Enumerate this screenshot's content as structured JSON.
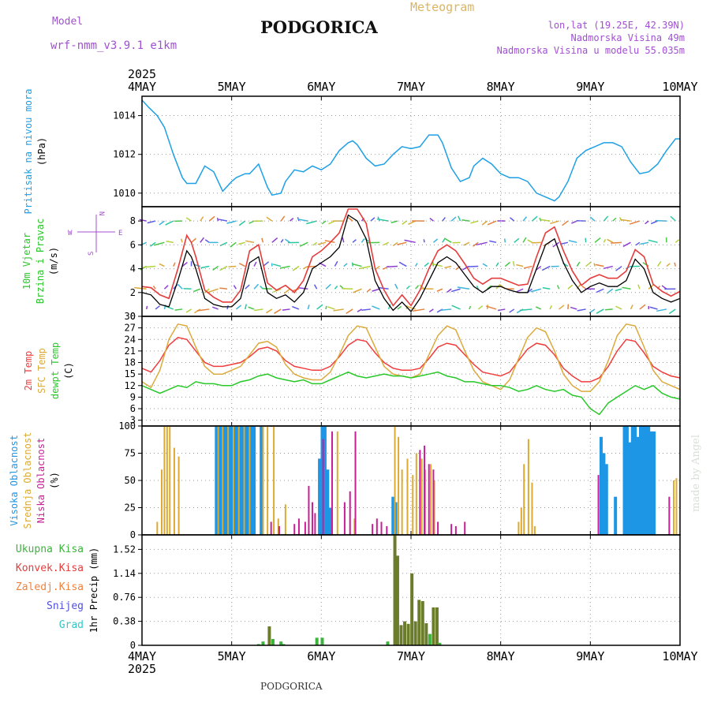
{
  "header": {
    "model_label": "Model",
    "model_name": "wrf-nmm_v3.9.1 e1km",
    "title": "PODGORICA",
    "product": "Meteogram",
    "coords": "lon,lat (19.25E, 42.39N)",
    "elevation": "Nadmorska Visina 49m",
    "model_elevation": "Nadmorska Visina u modelu 55.035m",
    "footer_city": "PODGORICA",
    "credit": "made by Angel"
  },
  "time_axis": {
    "year": "2025",
    "labels": [
      "4MAY",
      "5MAY",
      "6MAY",
      "7MAY",
      "8MAY",
      "9MAY",
      "10MAY"
    ]
  },
  "colors": {
    "pressure": "#1ea0e6",
    "temp2m": "#f03c3c",
    "sfc": "#dcaa3c",
    "dewpt": "#28c828",
    "high": "#1e96e6",
    "mid": "#dcaa32",
    "low": "#c81e96",
    "total_precip": "#3cb43c",
    "precip_bar": "#6b7d2a",
    "wind_speed": "#000000",
    "gust": "#e63c3c"
  },
  "chart_data": [
    {
      "type": "line",
      "name": "pressure",
      "ylabel": [
        "Pritisak na nivou mora",
        "(hPa)"
      ],
      "yticks": [
        1010,
        1012,
        1014
      ],
      "ylim": [
        1009.3,
        1015
      ],
      "x_days": [
        0,
        0.08,
        0.17,
        0.25,
        0.35,
        0.45,
        0.5,
        0.55,
        0.6,
        0.7,
        0.8,
        0.9,
        1.0,
        1.05,
        1.15,
        1.2,
        1.3,
        1.4,
        1.45,
        1.55,
        1.6,
        1.7,
        1.8,
        1.9,
        2.0,
        2.1,
        2.2,
        2.3,
        2.35,
        2.4,
        2.5,
        2.6,
        2.7,
        2.8,
        2.9,
        3.0,
        3.1,
        3.2,
        3.3,
        3.35,
        3.45,
        3.55,
        3.65,
        3.7,
        3.8,
        3.9,
        4.0,
        4.1,
        4.2,
        4.3,
        4.4,
        4.5,
        4.6,
        4.65,
        4.75,
        4.85,
        4.95,
        5.05,
        5.15,
        5.25,
        5.35,
        5.45,
        5.55,
        5.65,
        5.75,
        5.85,
        5.95,
        6.0
      ],
      "values": [
        1014.8,
        1014.4,
        1014.0,
        1013.4,
        1012.0,
        1010.8,
        1010.5,
        1010.5,
        1010.5,
        1011.4,
        1011.1,
        1010.1,
        1010.6,
        1010.8,
        1011.0,
        1011.0,
        1011.5,
        1010.3,
        1009.9,
        1010.0,
        1010.6,
        1011.2,
        1011.1,
        1011.4,
        1011.2,
        1011.5,
        1012.2,
        1012.6,
        1012.7,
        1012.5,
        1011.8,
        1011.4,
        1011.5,
        1012.0,
        1012.4,
        1012.3,
        1012.4,
        1013.0,
        1013.0,
        1012.6,
        1011.3,
        1010.6,
        1010.8,
        1011.4,
        1011.8,
        1011.5,
        1011.0,
        1010.8,
        1010.8,
        1010.6,
        1010.0,
        1009.8,
        1009.6,
        1009.8,
        1010.6,
        1011.8,
        1012.2,
        1012.4,
        1012.6,
        1012.6,
        1012.4,
        1011.6,
        1011.0,
        1011.1,
        1011.5,
        1012.2,
        1012.8,
        1012.8
      ]
    },
    {
      "type": "line",
      "name": "wind",
      "ylabel": [
        "10m Vjetar",
        "Brzina i Pravac",
        "(m/s)"
      ],
      "compass": [
        "N",
        "W",
        "E",
        "S"
      ],
      "yticks": [
        0,
        2,
        4,
        6,
        8
      ],
      "ylim": [
        0,
        9.2
      ],
      "x_days": [
        0,
        0.1,
        0.2,
        0.3,
        0.4,
        0.5,
        0.55,
        0.6,
        0.7,
        0.8,
        0.9,
        1.0,
        1.1,
        1.2,
        1.3,
        1.4,
        1.5,
        1.6,
        1.7,
        1.8,
        1.9,
        2.0,
        2.1,
        2.2,
        2.3,
        2.4,
        2.5,
        2.6,
        2.7,
        2.8,
        2.9,
        3.0,
        3.1,
        3.2,
        3.3,
        3.4,
        3.5,
        3.6,
        3.7,
        3.8,
        3.9,
        4.0,
        4.1,
        4.2,
        4.3,
        4.4,
        4.5,
        4.6,
        4.7,
        4.8,
        4.9,
        5.0,
        5.1,
        5.2,
        5.3,
        5.4,
        5.5,
        5.6,
        5.7,
        5.8,
        5.9,
        6.0
      ],
      "series": [
        {
          "key": "speed",
          "color_key": "wind_speed",
          "values": [
            2.0,
            1.8,
            1.0,
            0.8,
            3.0,
            5.5,
            5.0,
            4.0,
            1.5,
            1.0,
            0.8,
            0.8,
            1.5,
            4.5,
            5.0,
            2.0,
            1.5,
            1.8,
            1.2,
            2.0,
            4.0,
            4.5,
            5.0,
            5.8,
            8.5,
            8.0,
            6.5,
            3.0,
            1.5,
            0.5,
            1.2,
            0.4,
            1.5,
            3.0,
            4.5,
            5.0,
            4.5,
            3.5,
            2.5,
            2.0,
            2.5,
            2.5,
            2.2,
            2.0,
            2.0,
            4.0,
            6.0,
            6.5,
            4.5,
            3.0,
            2.0,
            2.5,
            2.8,
            2.5,
            2.5,
            3.0,
            4.8,
            4.0,
            2.0,
            1.5,
            1.2,
            1.5
          ]
        },
        {
          "key": "gust",
          "color_key": "gust",
          "values": [
            2.5,
            2.4,
            1.8,
            1.5,
            4.0,
            6.8,
            6.2,
            5.0,
            2.2,
            1.6,
            1.2,
            1.2,
            2.2,
            5.5,
            6.0,
            2.8,
            2.2,
            2.6,
            2.0,
            3.0,
            5.0,
            5.5,
            6.2,
            7.0,
            9.0,
            9.0,
            7.8,
            4.0,
            2.2,
            0.9,
            1.8,
            0.9,
            2.2,
            4.0,
            5.5,
            6.0,
            5.5,
            4.4,
            3.2,
            2.7,
            3.2,
            3.2,
            2.9,
            2.6,
            2.7,
            5.0,
            7.0,
            7.5,
            5.5,
            3.8,
            2.6,
            3.2,
            3.5,
            3.2,
            3.2,
            3.8,
            5.6,
            5.0,
            2.7,
            2.1,
            1.7,
            2.1
          ]
        }
      ]
    },
    {
      "type": "line",
      "name": "temperature",
      "ylabel": [
        "2m Temp",
        "SFC Temp",
        "dewpt Temp",
        "(C)"
      ],
      "yticks": [
        3,
        6,
        9,
        12,
        15,
        18,
        21,
        24,
        27,
        30
      ],
      "ylim": [
        1.5,
        30
      ],
      "x_days": [
        0,
        0.1,
        0.2,
        0.3,
        0.4,
        0.5,
        0.6,
        0.7,
        0.8,
        0.9,
        1.0,
        1.1,
        1.2,
        1.3,
        1.4,
        1.5,
        1.6,
        1.7,
        1.8,
        1.9,
        2.0,
        2.1,
        2.2,
        2.3,
        2.4,
        2.5,
        2.6,
        2.7,
        2.8,
        2.9,
        3.0,
        3.1,
        3.2,
        3.3,
        3.4,
        3.5,
        3.6,
        3.7,
        3.8,
        3.9,
        4.0,
        4.1,
        4.2,
        4.3,
        4.4,
        4.5,
        4.6,
        4.7,
        4.8,
        4.9,
        5.0,
        5.1,
        5.2,
        5.3,
        5.4,
        5.5,
        5.6,
        5.7,
        5.8,
        5.9,
        6.0
      ],
      "series": [
        {
          "key": "temp2m",
          "name": "2m Temp",
          "values": [
            16.5,
            15.5,
            18.5,
            22.5,
            24.5,
            24.0,
            21.0,
            18.0,
            17.0,
            17.0,
            17.5,
            18.0,
            19.5,
            21.5,
            22.0,
            21.0,
            18.5,
            17.0,
            16.5,
            16.0,
            16.0,
            17.0,
            19.5,
            22.5,
            24.0,
            23.5,
            20.5,
            18.0,
            16.5,
            16.0,
            16.0,
            16.5,
            19.0,
            22.0,
            23.0,
            22.5,
            20.0,
            17.5,
            15.5,
            15.0,
            14.5,
            15.5,
            18.5,
            21.5,
            23.0,
            22.5,
            20.0,
            16.5,
            14.5,
            13.0,
            13.0,
            14.0,
            17.0,
            21.0,
            24.0,
            23.5,
            20.5,
            17.0,
            15.5,
            14.5,
            14.0
          ]
        },
        {
          "key": "sfc",
          "name": "SFC Temp",
          "values": [
            13.0,
            11.5,
            16.0,
            24.0,
            28.0,
            27.5,
            22.0,
            17.0,
            15.0,
            15.0,
            16.0,
            17.0,
            20.0,
            23.0,
            23.5,
            22.0,
            17.5,
            15.0,
            14.0,
            13.5,
            13.5,
            15.5,
            20.0,
            25.0,
            27.5,
            27.0,
            22.0,
            17.0,
            15.0,
            14.5,
            14.0,
            15.0,
            20.0,
            25.0,
            27.5,
            26.5,
            21.0,
            16.0,
            13.0,
            12.0,
            11.0,
            13.5,
            19.0,
            24.5,
            27.0,
            26.0,
            21.0,
            15.0,
            12.0,
            10.5,
            10.5,
            13.0,
            18.5,
            25.0,
            28.0,
            27.5,
            22.0,
            16.0,
            13.0,
            12.0,
            11.0
          ]
        },
        {
          "key": "dewpt",
          "name": "dewpt Temp",
          "values": [
            12.0,
            11.0,
            10.0,
            11.0,
            12.0,
            11.5,
            13.0,
            12.5,
            12.5,
            12.0,
            12.0,
            13.0,
            13.5,
            14.5,
            15.0,
            14.0,
            13.5,
            13.0,
            13.5,
            12.5,
            12.5,
            13.5,
            14.5,
            15.5,
            14.5,
            14.0,
            14.5,
            15.0,
            14.5,
            14.5,
            14.0,
            14.5,
            15.0,
            15.5,
            14.5,
            14.0,
            13.0,
            13.0,
            12.5,
            12.0,
            12.0,
            11.5,
            10.5,
            11.0,
            12.0,
            11.0,
            10.5,
            11.0,
            9.5,
            9.0,
            6.0,
            4.5,
            7.5,
            9.0,
            10.5,
            12.0,
            11.0,
            12.0,
            10.0,
            9.0,
            8.5
          ]
        }
      ]
    },
    {
      "type": "bar",
      "name": "cloud",
      "ylabel": [
        "Visoka Oblacnost",
        "Srednja Oblacnost",
        "Niska Oblacnost",
        "(%)"
      ],
      "yticks": [
        0,
        25,
        50,
        75,
        100
      ],
      "ylim": [
        0,
        100
      ],
      "series": [
        {
          "key": "high",
          "name": "Visoka Oblacnost",
          "x_days": [
            0.83,
            0.86,
            0.89,
            0.92,
            0.95,
            0.98,
            1.01,
            1.04,
            1.07,
            1.1,
            1.13,
            1.16,
            1.19,
            1.22,
            1.25,
            1.33,
            1.98,
            2.01,
            2.04,
            2.07,
            2.1,
            2.8,
            2.83,
            5.12,
            5.15,
            5.18,
            5.28,
            5.38,
            5.41,
            5.44,
            5.47,
            5.5,
            5.53,
            5.56,
            5.59,
            5.62,
            5.65,
            5.68,
            5.71
          ],
          "values": [
            100,
            100,
            100,
            100,
            100,
            100,
            100,
            100,
            100,
            100,
            100,
            100,
            100,
            100,
            100,
            100,
            70,
            100,
            100,
            60,
            25,
            35,
            30,
            90,
            75,
            65,
            35,
            100,
            100,
            85,
            100,
            100,
            90,
            100,
            100,
            100,
            100,
            95,
            95
          ]
        },
        {
          "key": "mid",
          "name": "Srednja Oblacnost",
          "x_days": [
            0.17,
            0.22,
            0.25,
            0.28,
            0.31,
            0.36,
            0.41,
            0.85,
            0.9,
            0.96,
            1.02,
            1.08,
            1.14,
            1.2,
            1.35,
            1.4,
            1.47,
            1.52,
            1.6,
            2.18,
            2.37,
            2.82,
            2.86,
            2.9,
            2.96,
            3.02,
            3.06,
            3.12,
            3.16,
            3.22,
            3.26,
            4.2,
            4.23,
            4.26,
            4.31,
            4.35,
            4.38,
            5.93,
            5.96
          ],
          "values": [
            12,
            60,
            100,
            100,
            100,
            80,
            72,
            100,
            100,
            100,
            100,
            100,
            100,
            100,
            100,
            100,
            100,
            15,
            28,
            95,
            15,
            100,
            90,
            60,
            70,
            55,
            75,
            70,
            60,
            65,
            50,
            12,
            25,
            65,
            88,
            48,
            8,
            50,
            52
          ]
        },
        {
          "key": "low",
          "name": "Niska Oblacnost",
          "x_days": [
            1.44,
            1.53,
            1.7,
            1.75,
            1.82,
            1.86,
            1.9,
            1.93,
            2.02,
            2.12,
            2.26,
            2.32,
            2.38,
            2.57,
            2.62,
            2.67,
            2.73,
            3.1,
            3.15,
            3.2,
            3.25,
            3.3,
            3.45,
            3.5,
            3.6,
            5.09,
            5.88
          ],
          "values": [
            12,
            8,
            10,
            15,
            12,
            45,
            30,
            20,
            88,
            95,
            30,
            40,
            95,
            10,
            15,
            12,
            8,
            78,
            82,
            65,
            60,
            12,
            10,
            8,
            12,
            55,
            35
          ]
        }
      ]
    },
    {
      "type": "bar",
      "name": "precipitation",
      "ylabel": [
        "1hr Precip (mm)"
      ],
      "legend": [
        "Ukupna Kisa",
        "Konvek.Kisa",
        "Zaledj.Kisa",
        "Snijeg",
        "Grad"
      ],
      "legend_colors": [
        "#3cb43c",
        "#e63c3c",
        "#f0823c",
        "#5050dc",
        "#32c8c8"
      ],
      "yticks": [
        0,
        0.38,
        0.76,
        1.14,
        1.52
      ],
      "ylim": [
        0,
        1.75
      ],
      "x_days": [
        1.3,
        1.35,
        1.42,
        1.46,
        1.55,
        1.58,
        1.95,
        2.01,
        2.74,
        2.82,
        2.85,
        2.89,
        2.93,
        2.97,
        3.01,
        3.05,
        3.09,
        3.13,
        3.17,
        3.21,
        3.25,
        3.29,
        3.32
      ],
      "values": [
        0.02,
        0.06,
        0.3,
        0.1,
        0.06,
        0.02,
        0.12,
        0.12,
        0.06,
        1.75,
        1.42,
        0.32,
        0.38,
        0.34,
        1.14,
        0.38,
        0.72,
        0.7,
        0.35,
        0.18,
        0.6,
        0.6,
        0.04
      ]
    }
  ]
}
